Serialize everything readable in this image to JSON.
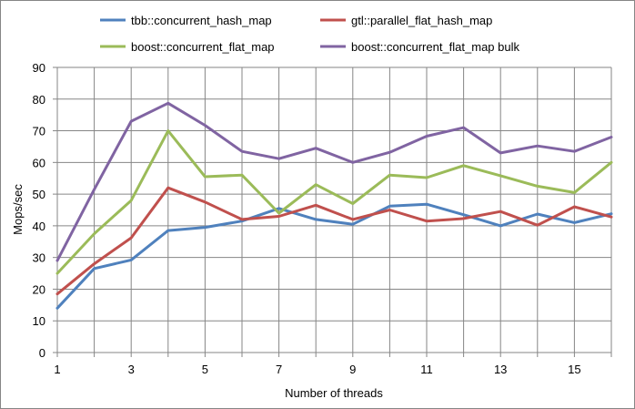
{
  "chart_data": {
    "type": "line",
    "title": "",
    "xlabel": "Number of threads",
    "ylabel": "Mops/sec",
    "xlim": [
      1,
      16
    ],
    "ylim": [
      0,
      90
    ],
    "x_ticks": [
      1,
      3,
      5,
      7,
      9,
      11,
      13,
      15
    ],
    "y_ticks": [
      0,
      10,
      20,
      30,
      40,
      50,
      60,
      70,
      80,
      90
    ],
    "grid": true,
    "legend_position": "top",
    "x": [
      1,
      2,
      3,
      4,
      5,
      6,
      7,
      8,
      9,
      10,
      11,
      12,
      13,
      14,
      15,
      16
    ],
    "series": [
      {
        "name": "tbb::concurrent_hash_map",
        "color": "#4f81bd",
        "values": [
          14,
          26.5,
          29.2,
          38.5,
          39.5,
          41.5,
          45.5,
          42,
          40.5,
          46.2,
          46.8,
          43.5,
          40,
          43.7,
          41,
          43.8
        ]
      },
      {
        "name": "gtl::parallel_flat_hash_map",
        "color": "#c0504d",
        "values": [
          18.5,
          28,
          36.2,
          52,
          47.5,
          42,
          43,
          46.5,
          42,
          45,
          41.5,
          42.3,
          44.5,
          40.2,
          46,
          42.8
        ]
      },
      {
        "name": "boost::concurrent_flat_map",
        "color": "#9bbb59",
        "values": [
          25,
          37.5,
          48,
          70,
          55.5,
          56,
          44,
          53,
          47,
          56,
          55.2,
          59,
          55.8,
          52.5,
          50.5,
          60
        ]
      },
      {
        "name": "boost::concurrent_flat_map bulk",
        "color": "#8064a2",
        "values": [
          29,
          51.5,
          73,
          78.7,
          71.7,
          63.5,
          61.2,
          64.5,
          60,
          63.2,
          68.3,
          71,
          63,
          65.2,
          63.5,
          68
        ]
      }
    ]
  }
}
